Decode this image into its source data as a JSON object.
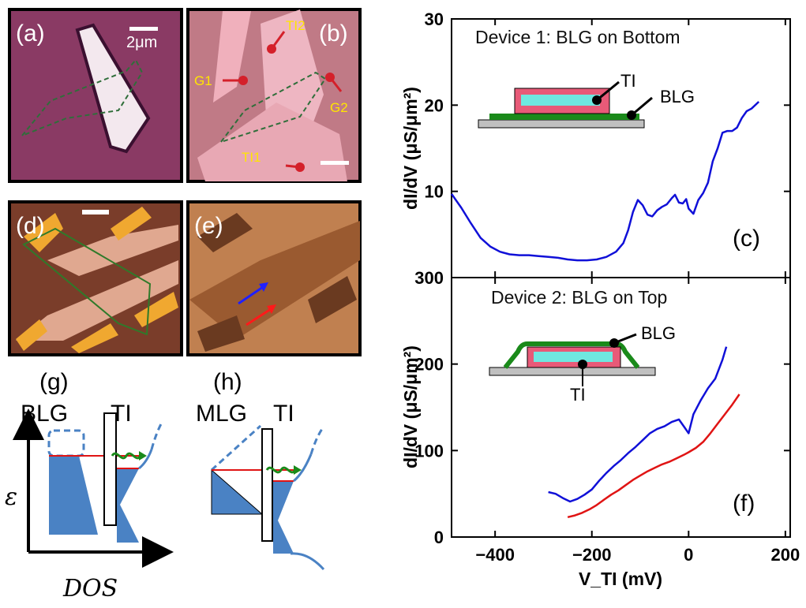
{
  "panels": {
    "a": {
      "label": "(a)",
      "scale": "2μm"
    },
    "b": {
      "label": "(b)",
      "tags": {
        "tl2": "TI2",
        "g1": "G1",
        "g2": "G2",
        "tl1": "TI1"
      }
    },
    "d": {
      "label": "(d)"
    },
    "e": {
      "label": "(e)"
    },
    "g": {
      "label": "(g)",
      "left": "BLG",
      "right": "TI"
    },
    "h": {
      "label": "(h)",
      "left": "MLG",
      "right": "TI"
    },
    "energy_axis": "ε",
    "dos_axis": "DOS"
  },
  "colors": {
    "blue": "#1010d8",
    "red": "#e01414",
    "dos_fill": "#4a82c4",
    "green": "#1a7a1a",
    "pink": "#e85a78",
    "cyan": "#6fe8e0"
  },
  "chart_data": [
    {
      "type": "line",
      "panel_label": "(c)",
      "title": "Device 1: BLG on Bottom",
      "ylabel": "dI/dV (μS/μm²)",
      "xlim": [
        -490,
        210
      ],
      "ylim": [
        0,
        30
      ],
      "yticks": [
        10,
        20,
        30
      ],
      "inset_labels": {
        "top": "TI",
        "bottom": "BLG"
      },
      "series": [
        {
          "color": "#1010d8",
          "x": [
            -490,
            -470,
            -450,
            -430,
            -410,
            -390,
            -370,
            -350,
            -330,
            -310,
            -290,
            -270,
            -250,
            -230,
            -210,
            -190,
            -170,
            -150,
            -135,
            -125,
            -115,
            -105,
            -95,
            -85,
            -75,
            -65,
            -55,
            -45,
            -35,
            -28,
            -20,
            -12,
            -5,
            0,
            10,
            20,
            30,
            40,
            50,
            60,
            70,
            80,
            90,
            100,
            110,
            120,
            130,
            145
          ],
          "y": [
            9.7,
            8.1,
            6.3,
            4.6,
            3.6,
            3.0,
            2.7,
            2.6,
            2.6,
            2.5,
            2.4,
            2.3,
            2.1,
            2.0,
            2.0,
            2.1,
            2.4,
            3.0,
            4.0,
            5.5,
            7.6,
            9.0,
            8.4,
            7.3,
            7.1,
            7.8,
            8.2,
            8.5,
            9.2,
            9.6,
            8.7,
            8.6,
            9.1,
            8.0,
            7.4,
            9.0,
            9.8,
            11.0,
            13.5,
            15.0,
            16.8,
            17.0,
            17.0,
            17.4,
            18.5,
            19.3,
            19.6,
            20.4
          ]
        }
      ]
    },
    {
      "type": "line",
      "panel_label": "(f)",
      "title": "Device 2: BLG on Top",
      "ylabel": "dI/dV (μS/μm²)",
      "xlabel": "V_TI (mV)",
      "xlim": [
        -490,
        210
      ],
      "ylim": [
        0,
        300
      ],
      "xticks": [
        -400,
        -200,
        0,
        200
      ],
      "yticks": [
        0,
        100,
        200,
        300
      ],
      "inset_labels": {
        "top": "BLG",
        "bottom": "TI"
      },
      "series": [
        {
          "color": "#1010d8",
          "x": [
            -290,
            -275,
            -260,
            -245,
            -230,
            -215,
            -200,
            -185,
            -170,
            -155,
            -140,
            -125,
            -110,
            -95,
            -80,
            -65,
            -50,
            -35,
            -20,
            -10,
            0,
            10,
            25,
            40,
            55,
            70,
            78
          ],
          "y": [
            52,
            50,
            45,
            41,
            44,
            49,
            55,
            65,
            74,
            82,
            89,
            97,
            104,
            112,
            120,
            125,
            128,
            133,
            136,
            128,
            120,
            142,
            158,
            172,
            183,
            205,
            220
          ]
        },
        {
          "color": "#e01414",
          "x": [
            -250,
            -235,
            -220,
            -205,
            -190,
            -175,
            -160,
            -145,
            -130,
            -115,
            -100,
            -85,
            -70,
            -55,
            -40,
            -25,
            -10,
            0,
            15,
            30,
            45,
            60,
            75,
            90,
            105
          ],
          "y": [
            23,
            25,
            28,
            32,
            37,
            43,
            49,
            54,
            60,
            66,
            71,
            76,
            80,
            84,
            87,
            91,
            95,
            98,
            103,
            110,
            120,
            131,
            142,
            153,
            165
          ]
        }
      ]
    }
  ]
}
